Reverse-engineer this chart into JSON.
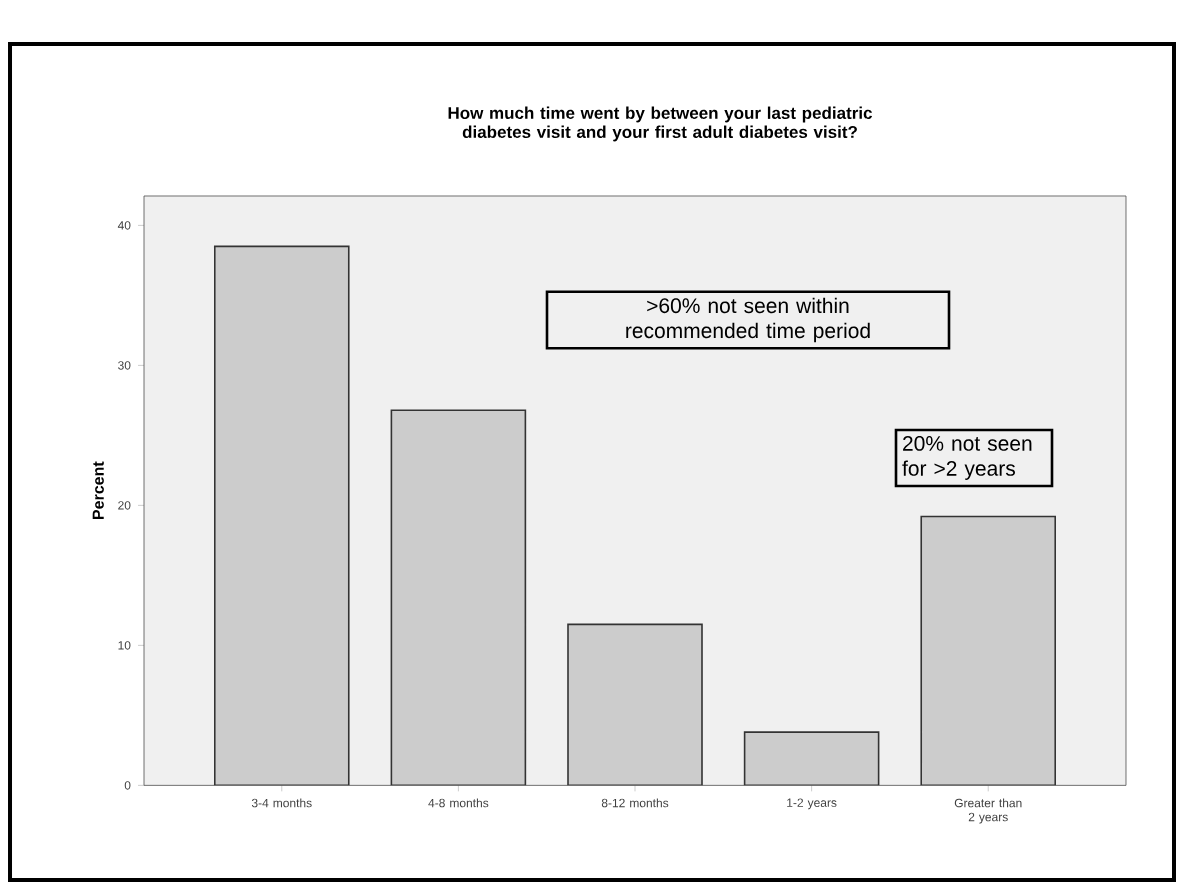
{
  "chart_data": {
    "type": "bar",
    "title": "How much time went by between your last pediatric diabetes visit and your first adult diabetes visit?",
    "ylabel": "Percent",
    "categories": [
      "3-4 months",
      "4-8 months",
      "8-12 months",
      "1-2 years",
      "Greater than 2 years"
    ],
    "values": [
      38.5,
      26.8,
      11.5,
      3.8,
      19.2
    ],
    "color": "#cccccc",
    "ylim": [
      0,
      42.1
    ],
    "yticks": [
      0,
      10,
      20,
      30,
      40
    ],
    "annotations": [
      ">60% not seen within recommended time period",
      "20% not seen for >2 years"
    ]
  }
}
